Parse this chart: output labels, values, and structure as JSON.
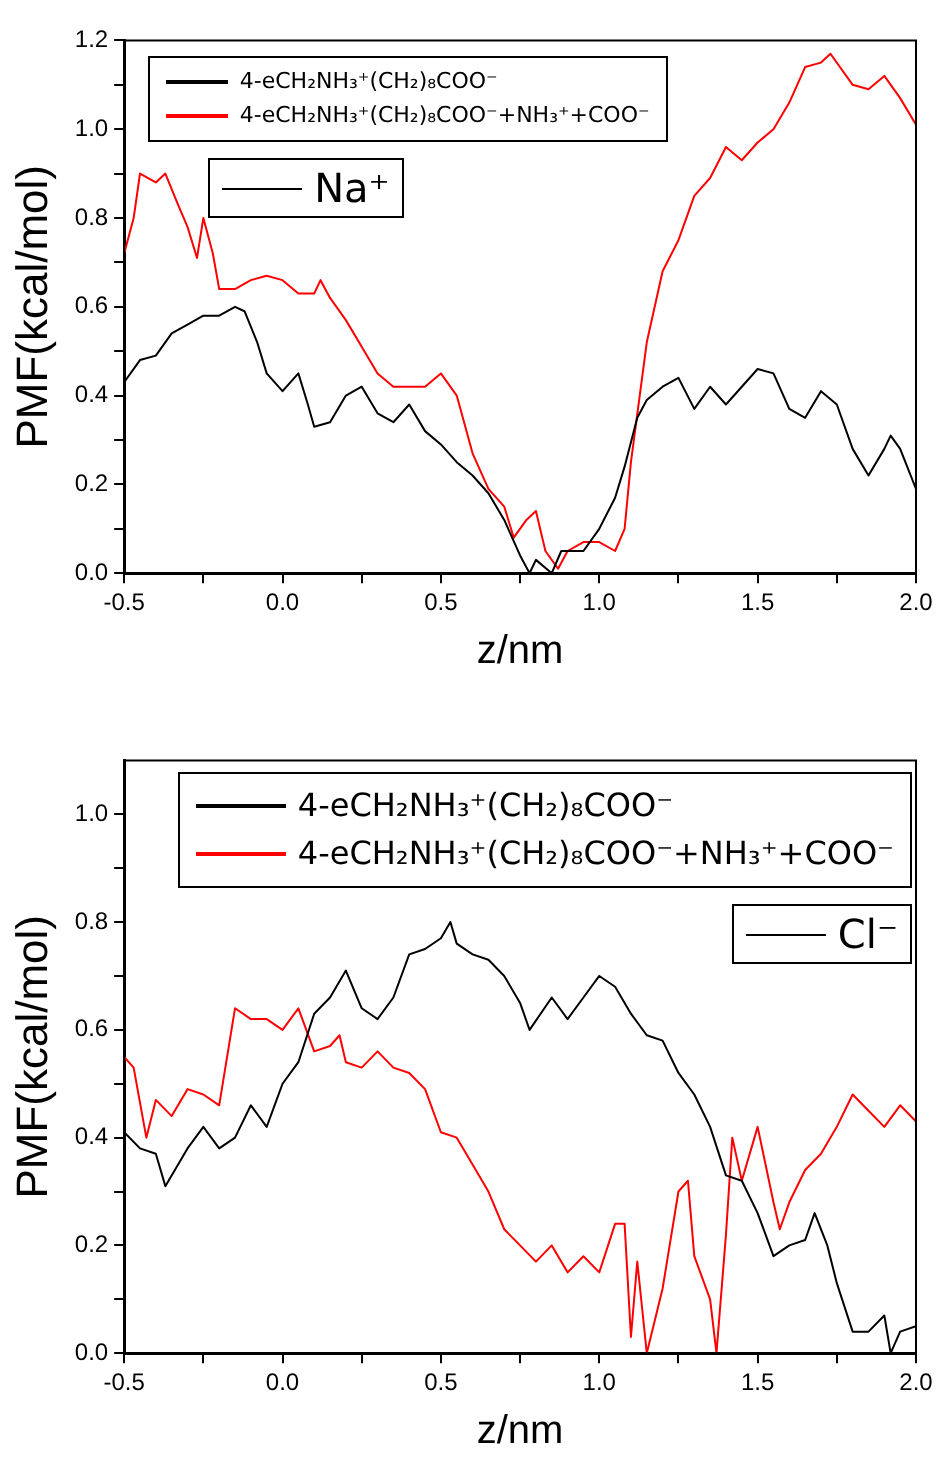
{
  "chart_data": [
    {
      "type": "line",
      "xlabel": "z/nm",
      "ylabel": "PMF(kcal/mol)",
      "xlim": [
        -0.5,
        2.0
      ],
      "ylim": [
        0,
        1.2
      ],
      "xticks": [
        -0.5,
        {
          "value": -0.25,
          "label": null
        },
        "0.0",
        {
          "value": 0.25,
          "label": null
        },
        0.5,
        {
          "value": 0.75,
          "label": null
        },
        "1.0",
        {
          "value": 1.25,
          "label": null
        },
        1.5,
        {
          "value": 1.75,
          "label": null
        },
        "2.0"
      ],
      "yticks": [
        "0.0",
        {
          "value": 0.1,
          "label": null
        },
        0.2,
        {
          "value": 0.3,
          "label": null
        },
        0.4,
        {
          "value": 0.5,
          "label": null
        },
        0.6,
        {
          "value": 0.7,
          "label": null
        },
        0.8,
        {
          "value": 0.9,
          "label": null
        },
        "1.0",
        {
          "value": 1.1,
          "label": null
        },
        1.2
      ],
      "legend": "top left",
      "annotations": [
        "Na⁺"
      ],
      "series": [
        {
          "name": "4-eCH₂NH₃⁺(CH₂)₈COO⁻",
          "color": "#000000",
          "x": [
            -0.5,
            -0.45,
            -0.4,
            -0.35,
            -0.3,
            -0.25,
            -0.2,
            -0.15,
            -0.12,
            -0.08,
            -0.05,
            0.0,
            0.05,
            0.08,
            0.1,
            0.15,
            0.2,
            0.25,
            0.3,
            0.35,
            0.4,
            0.45,
            0.5,
            0.55,
            0.6,
            0.65,
            0.7,
            0.75,
            0.78,
            0.8,
            0.85,
            0.88,
            0.95,
            1.0,
            1.05,
            1.08,
            1.12,
            1.15,
            1.2,
            1.25,
            1.3,
            1.35,
            1.4,
            1.45,
            1.5,
            1.55,
            1.6,
            1.65,
            1.7,
            1.75,
            1.8,
            1.85,
            1.9,
            1.92,
            1.95,
            2.0
          ],
          "values": [
            0.43,
            0.48,
            0.49,
            0.54,
            0.56,
            0.58,
            0.58,
            0.6,
            0.59,
            0.52,
            0.45,
            0.41,
            0.45,
            0.38,
            0.33,
            0.34,
            0.4,
            0.42,
            0.36,
            0.34,
            0.38,
            0.32,
            0.29,
            0.25,
            0.22,
            0.18,
            0.12,
            0.04,
            0.0,
            0.03,
            0.0,
            0.05,
            0.05,
            0.1,
            0.17,
            0.24,
            0.35,
            0.39,
            0.42,
            0.44,
            0.37,
            0.42,
            0.38,
            0.42,
            0.46,
            0.45,
            0.37,
            0.35,
            0.41,
            0.38,
            0.28,
            0.22,
            0.28,
            0.31,
            0.28,
            0.19
          ]
        },
        {
          "name": "4-eCH₂NH₃⁺(CH₂)₈COO⁻+NH₃⁺+COO⁻",
          "color": "#ff0000",
          "x": [
            -0.5,
            -0.47,
            -0.45,
            -0.4,
            -0.37,
            -0.33,
            -0.3,
            -0.27,
            -0.25,
            -0.22,
            -0.2,
            -0.15,
            -0.1,
            -0.05,
            0.0,
            0.05,
            0.1,
            0.12,
            0.15,
            0.2,
            0.25,
            0.3,
            0.35,
            0.4,
            0.45,
            0.5,
            0.55,
            0.6,
            0.65,
            0.7,
            0.73,
            0.77,
            0.8,
            0.83,
            0.87,
            0.9,
            0.95,
            1.0,
            1.05,
            1.08,
            1.1,
            1.15,
            1.2,
            1.25,
            1.3,
            1.35,
            1.4,
            1.45,
            1.5,
            1.55,
            1.6,
            1.65,
            1.7,
            1.73,
            1.8,
            1.85,
            1.9,
            1.95,
            2.0
          ],
          "values": [
            0.72,
            0.8,
            0.9,
            0.88,
            0.9,
            0.83,
            0.78,
            0.71,
            0.8,
            0.72,
            0.64,
            0.64,
            0.66,
            0.67,
            0.66,
            0.63,
            0.63,
            0.66,
            0.62,
            0.57,
            0.51,
            0.45,
            0.42,
            0.42,
            0.42,
            0.45,
            0.4,
            0.27,
            0.19,
            0.15,
            0.08,
            0.12,
            0.14,
            0.05,
            0.01,
            0.05,
            0.07,
            0.07,
            0.05,
            0.1,
            0.25,
            0.52,
            0.68,
            0.75,
            0.85,
            0.89,
            0.96,
            0.93,
            0.97,
            1.0,
            1.06,
            1.14,
            1.15,
            1.17,
            1.1,
            1.09,
            1.12,
            1.07,
            1.01
          ]
        }
      ]
    },
    {
      "type": "line",
      "xlabel": "z/nm",
      "ylabel": "PMF(kcal/mol)",
      "xlim": [
        -0.5,
        2.0
      ],
      "ylim": [
        0,
        1.1
      ],
      "xticks": [
        -0.5,
        {
          "value": -0.25,
          "label": null
        },
        "0.0",
        {
          "value": 0.25,
          "label": null
        },
        0.5,
        {
          "value": 0.75,
          "label": null
        },
        "1.0",
        {
          "value": 1.25,
          "label": null
        },
        1.5,
        {
          "value": 1.75,
          "label": null
        },
        "2.0"
      ],
      "yticks": [
        "0.0",
        {
          "value": 0.1,
          "label": null
        },
        0.2,
        {
          "value": 0.3,
          "label": null
        },
        0.4,
        {
          "value": 0.5,
          "label": null
        },
        0.6,
        {
          "value": 0.7,
          "label": null
        },
        0.8,
        {
          "value": 0.9,
          "label": null
        },
        "1.0"
      ],
      "legend": "top right",
      "annotations": [
        "Cl⁻"
      ],
      "series": [
        {
          "name": "4-eCH₂NH₃⁺(CH₂)₈COO⁻",
          "color": "#000000",
          "x": [
            -0.5,
            -0.45,
            -0.4,
            -0.37,
            -0.3,
            -0.25,
            -0.2,
            -0.15,
            -0.1,
            -0.05,
            0.0,
            0.05,
            0.1,
            0.15,
            0.2,
            0.25,
            0.3,
            0.35,
            0.4,
            0.45,
            0.5,
            0.53,
            0.55,
            0.6,
            0.65,
            0.7,
            0.75,
            0.78,
            0.85,
            0.9,
            0.95,
            1.0,
            1.05,
            1.1,
            1.15,
            1.2,
            1.25,
            1.3,
            1.35,
            1.4,
            1.45,
            1.5,
            1.55,
            1.6,
            1.65,
            1.68,
            1.72,
            1.75,
            1.8,
            1.85,
            1.9,
            1.92,
            1.95,
            2.0
          ],
          "values": [
            0.41,
            0.38,
            0.37,
            0.31,
            0.38,
            0.42,
            0.38,
            0.4,
            0.46,
            0.42,
            0.5,
            0.54,
            0.63,
            0.66,
            0.71,
            0.64,
            0.62,
            0.66,
            0.74,
            0.75,
            0.77,
            0.8,
            0.76,
            0.74,
            0.73,
            0.7,
            0.65,
            0.6,
            0.66,
            0.62,
            0.66,
            0.7,
            0.68,
            0.63,
            0.59,
            0.58,
            0.52,
            0.48,
            0.42,
            0.33,
            0.32,
            0.26,
            0.18,
            0.2,
            0.21,
            0.26,
            0.2,
            0.13,
            0.04,
            0.04,
            0.07,
            0.0,
            0.04,
            0.05
          ]
        },
        {
          "name": "4-eCH₂NH₃⁺(CH₂)₈COO⁻+NH₃⁺+COO⁻",
          "color": "#ff0000",
          "x": [
            -0.5,
            -0.47,
            -0.43,
            -0.4,
            -0.35,
            -0.3,
            -0.25,
            -0.2,
            -0.15,
            -0.1,
            -0.05,
            0.0,
            0.05,
            0.1,
            0.15,
            0.18,
            0.2,
            0.25,
            0.3,
            0.35,
            0.4,
            0.45,
            0.5,
            0.55,
            0.6,
            0.65,
            0.7,
            0.75,
            0.8,
            0.85,
            0.9,
            0.95,
            1.0,
            1.05,
            1.08,
            1.1,
            1.12,
            1.15,
            1.2,
            1.25,
            1.28,
            1.3,
            1.35,
            1.37,
            1.4,
            1.42,
            1.45,
            1.5,
            1.55,
            1.57,
            1.6,
            1.65,
            1.7,
            1.75,
            1.8,
            1.85,
            1.9,
            1.95,
            2.0
          ],
          "values": [
            0.55,
            0.53,
            0.4,
            0.47,
            0.44,
            0.49,
            0.48,
            0.46,
            0.64,
            0.62,
            0.62,
            0.6,
            0.64,
            0.56,
            0.57,
            0.59,
            0.54,
            0.53,
            0.56,
            0.53,
            0.52,
            0.49,
            0.41,
            0.4,
            0.35,
            0.3,
            0.23,
            0.2,
            0.17,
            0.2,
            0.15,
            0.18,
            0.15,
            0.24,
            0.24,
            0.03,
            0.17,
            0.0,
            0.12,
            0.3,
            0.32,
            0.18,
            0.1,
            0.0,
            0.22,
            0.4,
            0.32,
            0.42,
            0.28,
            0.23,
            0.28,
            0.34,
            0.37,
            0.42,
            0.48,
            0.45,
            0.42,
            0.46,
            0.43
          ]
        }
      ]
    }
  ]
}
